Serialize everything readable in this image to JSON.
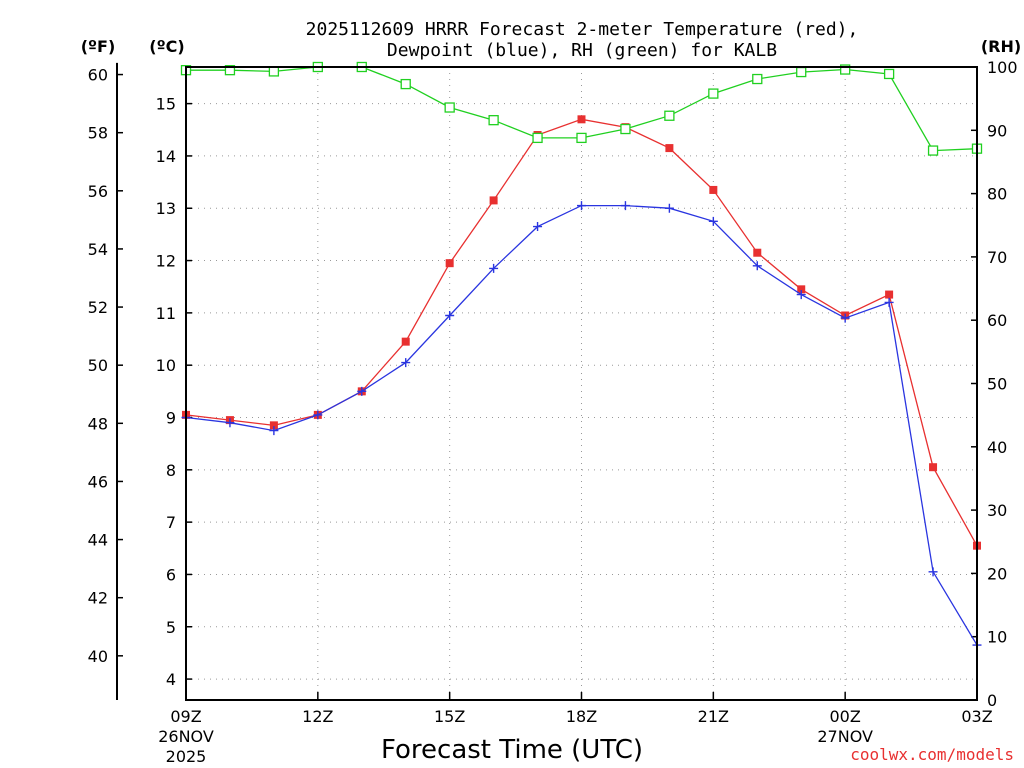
{
  "chart_data": {
    "type": "line",
    "title": "2025112609 HRRR Forecast 2-meter Temperature (red),",
    "subtitle": "Dewpoint (blue), RH (green) for KALB",
    "xlabel": "Forecast Time (UTC)",
    "credit": "coolwx.com/models",
    "axis_units": {
      "fahrenheit": "(ºF)",
      "celsius": "(ºC)",
      "rh": "(RH)"
    },
    "x_hours": [
      0,
      1,
      2,
      3,
      4,
      5,
      6,
      7,
      8,
      9,
      10,
      11,
      12,
      13,
      14,
      15,
      16,
      17,
      18
    ],
    "x_ticks": [
      {
        "hour": 0,
        "label": "09Z",
        "sub1": "26NOV",
        "sub2": "2025"
      },
      {
        "hour": 3,
        "label": "12Z",
        "sub1": "",
        "sub2": ""
      },
      {
        "hour": 6,
        "label": "15Z",
        "sub1": "",
        "sub2": ""
      },
      {
        "hour": 9,
        "label": "18Z",
        "sub1": "",
        "sub2": ""
      },
      {
        "hour": 12,
        "label": "21Z",
        "sub1": "",
        "sub2": ""
      },
      {
        "hour": 15,
        "label": "00Z",
        "sub1": "27NOV",
        "sub2": ""
      },
      {
        "hour": 18,
        "label": "03Z",
        "sub1": "",
        "sub2": ""
      }
    ],
    "celsius_range": [
      3.6,
      15.7
    ],
    "celsius_ticks": [
      4,
      5,
      6,
      7,
      8,
      9,
      10,
      11,
      12,
      13,
      14,
      15
    ],
    "fahrenheit_ticks": [
      40,
      42,
      44,
      46,
      48,
      50,
      52,
      54,
      56,
      58,
      60
    ],
    "fahrenheit_axis_top": 60.4,
    "rh_range": [
      0,
      100
    ],
    "rh_ticks": [
      0,
      10,
      20,
      30,
      40,
      50,
      60,
      70,
      80,
      90,
      100
    ],
    "series": [
      {
        "name": "Temperature",
        "unit": "C",
        "axis": "celsius",
        "color": "#e83030",
        "marker": "filled-square",
        "values": [
          9.05,
          8.95,
          8.85,
          9.05,
          9.5,
          10.45,
          11.95,
          13.15,
          14.4,
          14.7,
          14.55,
          14.15,
          13.35,
          12.15,
          11.45,
          10.95,
          11.35,
          8.05,
          6.55
        ]
      },
      {
        "name": "Dewpoint",
        "unit": "C",
        "axis": "celsius",
        "color": "#2a35e0",
        "marker": "plus",
        "values": [
          9.0,
          8.9,
          8.75,
          9.05,
          9.5,
          10.05,
          10.95,
          11.85,
          12.65,
          13.05,
          13.05,
          13.0,
          12.75,
          11.9,
          11.35,
          10.9,
          11.2,
          6.05,
          4.65
        ]
      },
      {
        "name": "RH",
        "unit": "%",
        "axis": "rh",
        "color": "#20d020",
        "marker": "open-square",
        "values": [
          99.5,
          99.5,
          99.3,
          100,
          100,
          97.3,
          93.6,
          91.6,
          88.8,
          88.8,
          90.2,
          92.3,
          95.8,
          98.1,
          99.2,
          99.6,
          98.9,
          86.8,
          87.1
        ]
      }
    ]
  }
}
